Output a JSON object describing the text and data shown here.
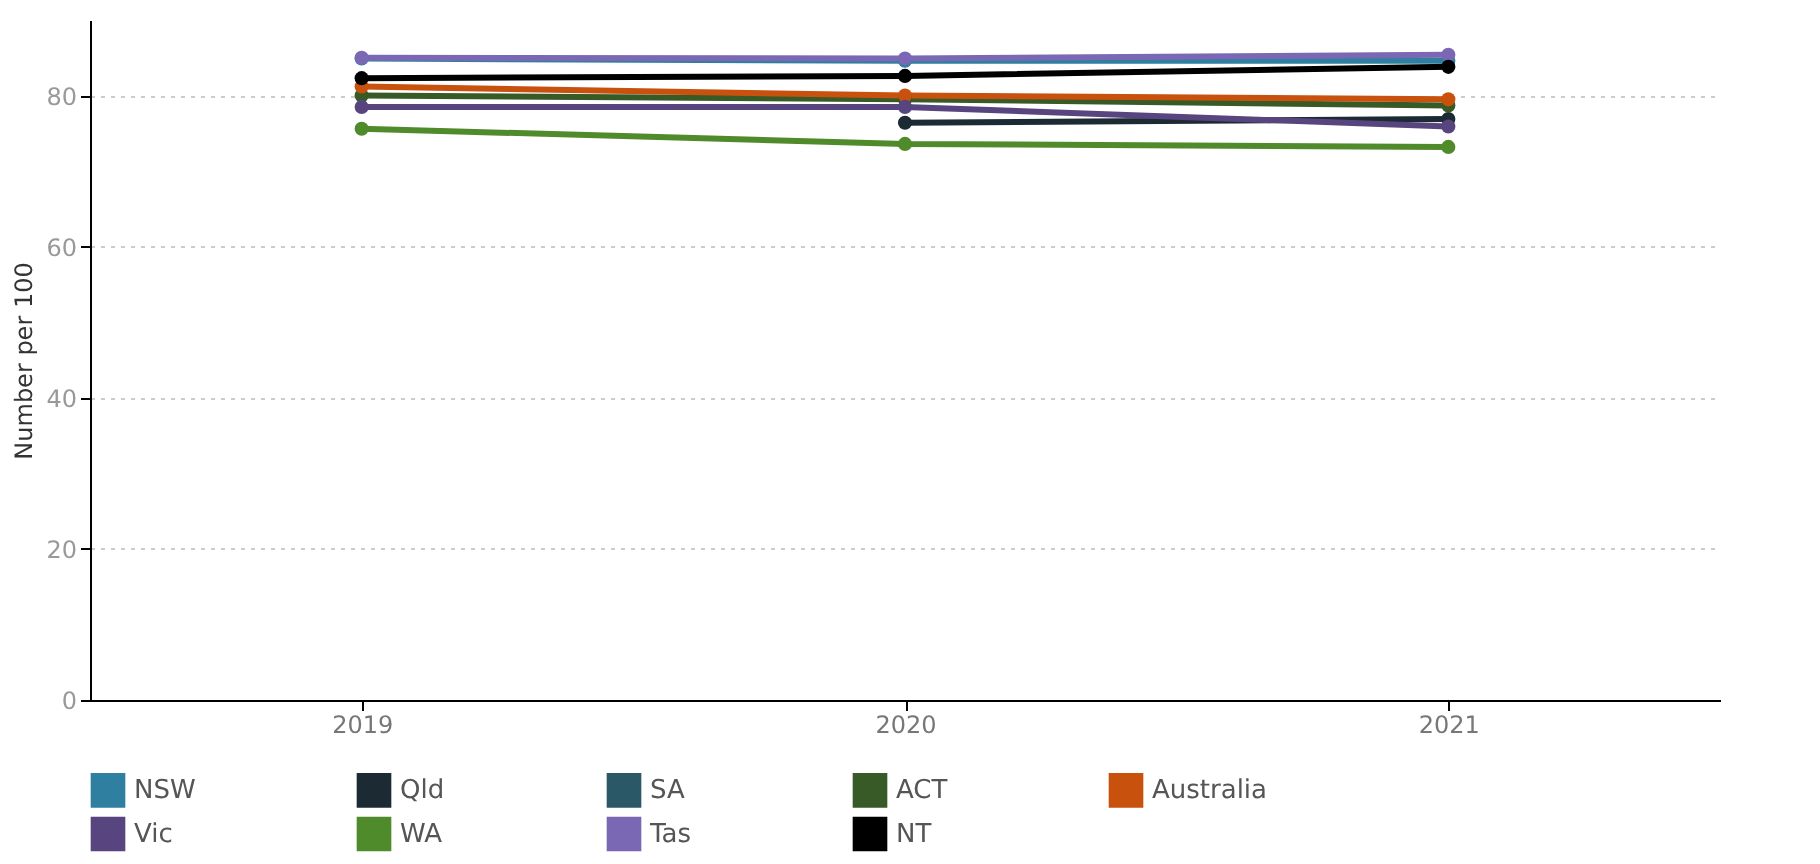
{
  "chart_data": {
    "type": "line",
    "ylabel": "Number per 100",
    "categories": [
      "2019",
      "2020",
      "2021"
    ],
    "ylim": [
      0,
      90
    ],
    "yticks": [
      0,
      20,
      40,
      60,
      80
    ],
    "grid": "y",
    "legend": "bottom",
    "marker": "circle",
    "line_style": "solid",
    "series": [
      {
        "name": "NSW",
        "color": "#2e7fa0",
        "values": [
          84.9,
          84.6,
          84.6
        ]
      },
      {
        "name": "Qld",
        "color": "#1b2a33",
        "values": [
          null,
          76.4,
          76.9
        ]
      },
      {
        "name": "SA",
        "color": "#2a5866",
        "values": [
          null,
          null,
          null
        ]
      },
      {
        "name": "ACT",
        "color": "#375a27",
        "values": [
          80.0,
          79.5,
          78.7
        ]
      },
      {
        "name": "Australia",
        "color": "#c8510d",
        "values": [
          81.2,
          80.0,
          79.5
        ]
      },
      {
        "name": "Vic",
        "color": "#58457f",
        "values": [
          78.5,
          78.5,
          75.9
        ]
      },
      {
        "name": "WA",
        "color": "#4f8a2b",
        "values": [
          75.6,
          73.6,
          73.2
        ]
      },
      {
        "name": "Tas",
        "color": "#7b68b5",
        "values": [
          85.0,
          84.9,
          85.4
        ]
      },
      {
        "name": "NT",
        "color": "#000000",
        "values": [
          82.3,
          82.6,
          83.8
        ]
      }
    ]
  }
}
